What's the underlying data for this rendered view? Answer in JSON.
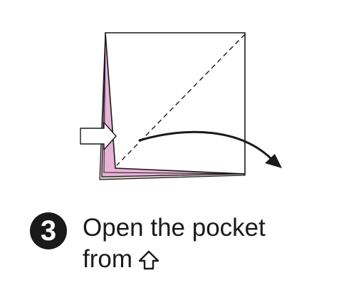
{
  "step": {
    "number": "3",
    "instruction_line1": "Open the pocket",
    "instruction_line2": "from",
    "direction_icon": "up-arrow-outline-icon"
  },
  "colors": {
    "paper_face": "#ffffff",
    "paper_inner": "#e7b3d6",
    "paper_edge": "#d7c8c4",
    "ink": "#1a1a1a"
  },
  "icons": {
    "fold_line": "dashed-fold-line-icon",
    "curved_arrow": "curved-arrow-icon",
    "pocket_arrow": "up-arrow-outline-icon"
  }
}
